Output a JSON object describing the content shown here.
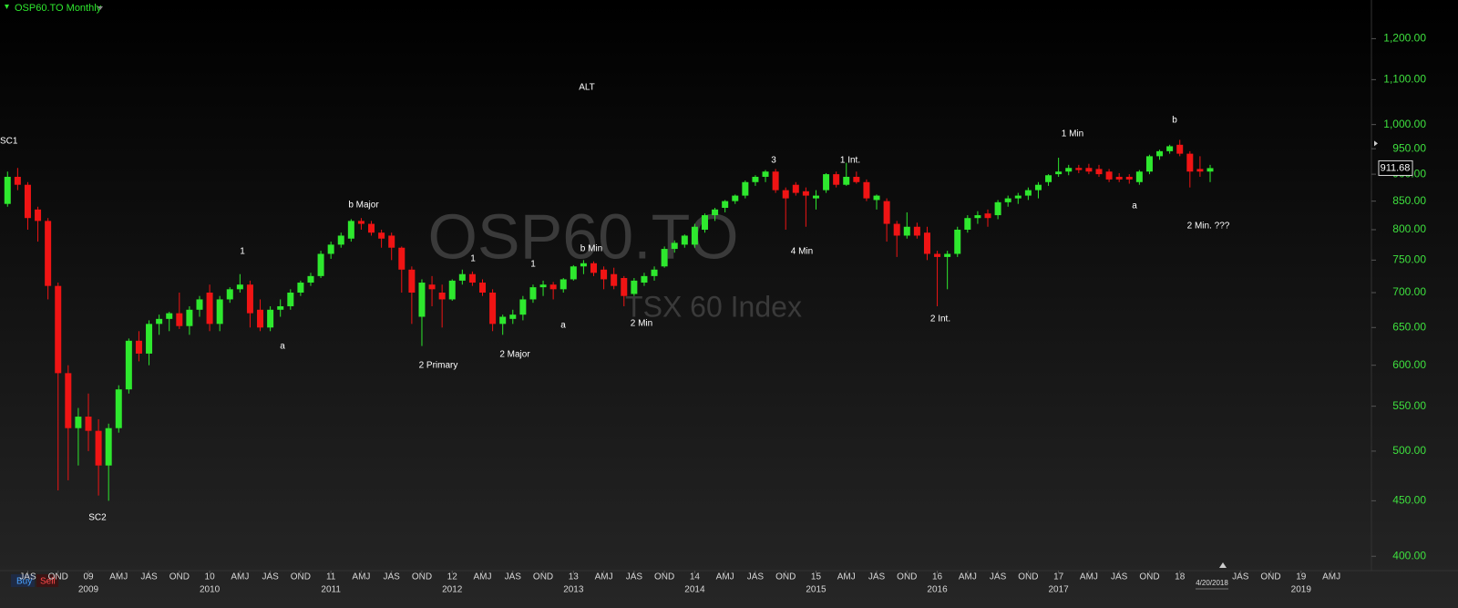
{
  "chart_data": {
    "type": "candlestick",
    "title": "OSP60.TO Monthly",
    "watermark": {
      "symbol": "OSP60.TO",
      "name": "TSX 60 Index"
    },
    "buttons": [
      "Buy",
      "Sell"
    ],
    "date_label": "4/20/2018",
    "last_price": 911.68,
    "log_scale": true,
    "up_color": "#2ee82e",
    "down_color": "#f01414",
    "categories": [
      null,
      null,
      null,
      null,
      null,
      null,
      null,
      null,
      null,
      null,
      null,
      null,
      null,
      null,
      null,
      null,
      null,
      null,
      null,
      null,
      null,
      null,
      null,
      null,
      null,
      null,
      null,
      null,
      null,
      null,
      null,
      null,
      null,
      null,
      null,
      null,
      null,
      null,
      null,
      null,
      null,
      null,
      null,
      null,
      null,
      null,
      null,
      null,
      null,
      null,
      null,
      null,
      null,
      null,
      null,
      null,
      null,
      null,
      null,
      null,
      null,
      null,
      null,
      null,
      null,
      null,
      null,
      null,
      null,
      null,
      null,
      null,
      null,
      null,
      null,
      null,
      null,
      null,
      null,
      null,
      null,
      null,
      null,
      null,
      null,
      null,
      null,
      null,
      null,
      null,
      null,
      null,
      null,
      null,
      null,
      null,
      null,
      null,
      null,
      null,
      null,
      null,
      null,
      null,
      null,
      null,
      null,
      null,
      null,
      null,
      null,
      null,
      null,
      null,
      null,
      null,
      null,
      null,
      null,
      null
    ],
    "ohlc": [
      [
        845,
        905,
        840,
        895
      ],
      [
        895,
        912,
        870,
        880
      ],
      [
        880,
        885,
        800,
        820
      ],
      [
        835,
        840,
        780,
        815
      ],
      [
        815,
        820,
        690,
        710
      ],
      [
        710,
        715,
        460,
        590
      ],
      [
        590,
        600,
        470,
        525
      ],
      [
        525,
        548,
        485,
        538
      ],
      [
        538,
        565,
        500,
        522
      ],
      [
        522,
        535,
        455,
        485
      ],
      [
        485,
        530,
        450,
        525
      ],
      [
        525,
        575,
        520,
        570
      ],
      [
        570,
        635,
        565,
        632
      ],
      [
        632,
        645,
        605,
        615
      ],
      [
        615,
        660,
        600,
        655
      ],
      [
        655,
        668,
        640,
        662
      ],
      [
        662,
        672,
        645,
        670
      ],
      [
        670,
        700,
        648,
        652
      ],
      [
        652,
        680,
        640,
        675
      ],
      [
        675,
        695,
        665,
        690
      ],
      [
        700,
        712,
        645,
        655
      ],
      [
        655,
        695,
        645,
        690
      ],
      [
        690,
        708,
        685,
        705
      ],
      [
        705,
        728,
        700,
        712
      ],
      [
        712,
        718,
        650,
        670
      ],
      [
        675,
        690,
        645,
        650
      ],
      [
        650,
        680,
        645,
        675
      ],
      [
        675,
        690,
        665,
        680
      ],
      [
        680,
        705,
        675,
        700
      ],
      [
        700,
        718,
        695,
        715
      ],
      [
        715,
        730,
        710,
        725
      ],
      [
        725,
        765,
        722,
        760
      ],
      [
        760,
        780,
        752,
        775
      ],
      [
        775,
        795,
        770,
        790
      ],
      [
        785,
        818,
        780,
        815
      ],
      [
        815,
        820,
        800,
        810
      ],
      [
        810,
        815,
        790,
        795
      ],
      [
        795,
        800,
        770,
        785
      ],
      [
        790,
        795,
        750,
        770
      ],
      [
        770,
        772,
        700,
        735
      ],
      [
        735,
        740,
        655,
        700
      ],
      [
        665,
        720,
        625,
        715
      ],
      [
        712,
        725,
        680,
        705
      ],
      [
        700,
        712,
        650,
        690
      ],
      [
        690,
        720,
        688,
        718
      ],
      [
        718,
        735,
        712,
        728
      ],
      [
        728,
        732,
        710,
        715
      ],
      [
        715,
        720,
        695,
        700
      ],
      [
        700,
        705,
        645,
        655
      ],
      [
        655,
        668,
        640,
        665
      ],
      [
        662,
        675,
        655,
        668
      ],
      [
        668,
        695,
        660,
        690
      ],
      [
        690,
        712,
        685,
        708
      ],
      [
        708,
        718,
        695,
        712
      ],
      [
        712,
        716,
        690,
        705
      ],
      [
        705,
        722,
        700,
        720
      ],
      [
        720,
        742,
        718,
        740
      ],
      [
        740,
        750,
        728,
        745
      ],
      [
        745,
        748,
        725,
        730
      ],
      [
        735,
        740,
        705,
        720
      ],
      [
        728,
        738,
        705,
        710
      ],
      [
        722,
        725,
        680,
        695
      ],
      [
        698,
        722,
        695,
        718
      ],
      [
        715,
        730,
        710,
        725
      ],
      [
        725,
        740,
        718,
        735
      ],
      [
        740,
        772,
        738,
        768
      ],
      [
        768,
        782,
        762,
        778
      ],
      [
        775,
        792,
        770,
        790
      ],
      [
        775,
        810,
        770,
        805
      ],
      [
        800,
        828,
        795,
        825
      ],
      [
        825,
        838,
        815,
        835
      ],
      [
        838,
        852,
        830,
        850
      ],
      [
        850,
        862,
        845,
        860
      ],
      [
        860,
        888,
        855,
        885
      ],
      [
        885,
        898,
        878,
        895
      ],
      [
        895,
        908,
        885,
        905
      ],
      [
        905,
        910,
        865,
        870
      ],
      [
        870,
        875,
        800,
        855
      ],
      [
        880,
        885,
        860,
        865
      ],
      [
        868,
        875,
        805,
        860
      ],
      [
        855,
        870,
        835,
        860
      ],
      [
        870,
        902,
        865,
        900
      ],
      [
        900,
        905,
        875,
        880
      ],
      [
        880,
        922,
        878,
        895
      ],
      [
        895,
        905,
        882,
        885
      ],
      [
        885,
        890,
        850,
        855
      ],
      [
        852,
        862,
        835,
        860
      ],
      [
        850,
        855,
        780,
        810
      ],
      [
        810,
        815,
        755,
        790
      ],
      [
        790,
        830,
        785,
        805
      ],
      [
        805,
        812,
        785,
        790
      ],
      [
        795,
        805,
        750,
        760
      ],
      [
        760,
        765,
        680,
        755
      ],
      [
        755,
        765,
        705,
        760
      ],
      [
        760,
        805,
        755,
        800
      ],
      [
        800,
        825,
        795,
        820
      ],
      [
        820,
        832,
        810,
        825
      ],
      [
        828,
        835,
        805,
        820
      ],
      [
        825,
        852,
        818,
        848
      ],
      [
        848,
        860,
        840,
        855
      ],
      [
        855,
        865,
        845,
        860
      ],
      [
        860,
        875,
        852,
        870
      ],
      [
        870,
        885,
        855,
        880
      ],
      [
        885,
        900,
        878,
        898
      ],
      [
        900,
        932,
        895,
        905
      ],
      [
        905,
        918,
        898,
        912
      ],
      [
        912,
        918,
        902,
        908
      ],
      [
        912,
        920,
        900,
        905
      ],
      [
        910,
        918,
        895,
        900
      ],
      [
        905,
        910,
        885,
        890
      ],
      [
        895,
        902,
        885,
        890
      ],
      [
        895,
        900,
        882,
        890
      ],
      [
        885,
        908,
        880,
        905
      ],
      [
        905,
        938,
        900,
        935
      ],
      [
        935,
        948,
        928,
        945
      ],
      [
        945,
        958,
        940,
        955
      ],
      [
        958,
        968,
        935,
        940
      ],
      [
        940,
        945,
        875,
        905
      ],
      [
        910,
        935,
        895,
        905
      ],
      [
        905,
        918,
        885,
        911.68
      ]
    ],
    "ylim": [
      388,
      1258
    ],
    "yticks": [
      {
        "value": 400,
        "label": "400.00"
      },
      {
        "value": 450,
        "label": "450.00"
      },
      {
        "value": 500,
        "label": "500.00"
      },
      {
        "value": 550,
        "label": "550.00"
      },
      {
        "value": 600,
        "label": "600.00"
      },
      {
        "value": 650,
        "label": "650.00"
      },
      {
        "value": 700,
        "label": "700.00"
      },
      {
        "value": 750,
        "label": "750.00"
      },
      {
        "value": 800,
        "label": "800.00"
      },
      {
        "value": 850,
        "label": "850.00"
      },
      {
        "value": 900,
        "label": "900.00"
      },
      {
        "value": 950,
        "label": "950.00"
      },
      {
        "value": 1000,
        "label": "1,000.00"
      },
      {
        "value": 1100,
        "label": "1,100.00"
      },
      {
        "value": 1200,
        "label": "1,200.00"
      }
    ],
    "xticks": [
      {
        "value": 2,
        "label": "JAS"
      },
      {
        "value": 5,
        "label": "OND"
      },
      {
        "value": 8,
        "label": "09"
      },
      {
        "value": 11,
        "label": "AMJ"
      },
      {
        "value": 14,
        "label": "JAS"
      },
      {
        "value": 17,
        "label": "OND"
      },
      {
        "value": 20,
        "label": "10"
      },
      {
        "value": 23,
        "label": "AMJ"
      },
      {
        "value": 26,
        "label": "JAS"
      },
      {
        "value": 29,
        "label": "OND"
      },
      {
        "value": 32,
        "label": "11"
      },
      {
        "value": 35,
        "label": "AMJ"
      },
      {
        "value": 38,
        "label": "JAS"
      },
      {
        "value": 41,
        "label": "OND"
      },
      {
        "value": 44,
        "label": "12"
      },
      {
        "value": 47,
        "label": "AMJ"
      },
      {
        "value": 50,
        "label": "JAS"
      },
      {
        "value": 53,
        "label": "OND"
      },
      {
        "value": 56,
        "label": "13"
      },
      {
        "value": 59,
        "label": "AMJ"
      },
      {
        "value": 62,
        "label": "JAS"
      },
      {
        "value": 65,
        "label": "OND"
      },
      {
        "value": 68,
        "label": "14"
      },
      {
        "value": 71,
        "label": "AMJ"
      },
      {
        "value": 74,
        "label": "JAS"
      },
      {
        "value": 77,
        "label": "OND"
      },
      {
        "value": 80,
        "label": "15"
      },
      {
        "value": 83,
        "label": "AMJ"
      },
      {
        "value": 86,
        "label": "JAS"
      },
      {
        "value": 89,
        "label": "OND"
      },
      {
        "value": 92,
        "label": "16"
      },
      {
        "value": 95,
        "label": "AMJ"
      },
      {
        "value": 98,
        "label": "JAS"
      },
      {
        "value": 101,
        "label": "OND"
      },
      {
        "value": 104,
        "label": "17"
      },
      {
        "value": 107,
        "label": "AMJ"
      },
      {
        "value": 110,
        "label": "JAS"
      },
      {
        "value": 113,
        "label": "OND"
      },
      {
        "value": 116,
        "label": "18"
      },
      {
        "value": 122,
        "label": "JAS"
      },
      {
        "value": 125,
        "label": "OND"
      },
      {
        "value": 128,
        "label": "19"
      },
      {
        "value": 131,
        "label": "AMJ"
      }
    ],
    "year_ticks": [
      {
        "value": 8,
        "label": "2009"
      },
      {
        "value": 20,
        "label": "2010"
      },
      {
        "value": 32,
        "label": "2011"
      },
      {
        "value": 44,
        "label": "2012"
      },
      {
        "value": 56,
        "label": "2013"
      },
      {
        "value": 68,
        "label": "2014"
      },
      {
        "value": 80,
        "label": "2015"
      },
      {
        "value": 92,
        "label": "2016"
      },
      {
        "value": 104,
        "label": "2017"
      },
      {
        "value": 128,
        "label": "2019"
      }
    ],
    "annotations": [
      "SC1",
      "SC2",
      "a",
      "1",
      "b Major",
      "2 Primary",
      "1",
      "2 Major",
      "1",
      "a",
      "b Min",
      "ALT",
      "2 Min",
      "3",
      "4 Min",
      "1 Int.",
      "2 Int.",
      "1 Min",
      "a",
      "b",
      "2 Min. ???"
    ]
  }
}
